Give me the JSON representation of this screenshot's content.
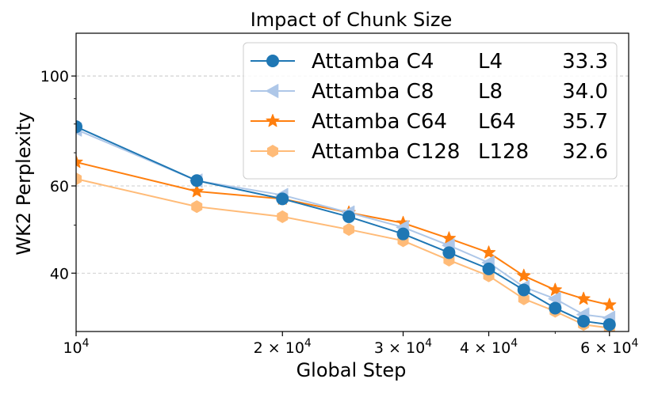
{
  "chart_data": {
    "type": "line",
    "title": "Impact of Chunk Size",
    "xlabel": "Global Step",
    "ylabel": "WK2 Perplexity",
    "xscale": "log",
    "yscale": "log",
    "xlim": [
      10000,
      64000
    ],
    "ylim": [
      30.5,
      122
    ],
    "grid": "y-major-dashed",
    "legend_position": "upper-right",
    "x": [
      10000,
      15000,
      20000,
      25000,
      30000,
      35000,
      40000,
      45000,
      50000,
      55000,
      60000
    ],
    "xticks": [
      {
        "value": 10000,
        "base": "10",
        "exp": "4"
      },
      {
        "value": 20000,
        "base": "2 × 10",
        "exp": "4"
      },
      {
        "value": 30000,
        "base": "3 × 10",
        "exp": "4"
      },
      {
        "value": 40000,
        "base": "4 × 10",
        "exp": "4"
      },
      {
        "value": 60000,
        "base": "6 × 10",
        "exp": "4"
      }
    ],
    "yticks": [
      {
        "value": 40,
        "label": "40"
      },
      {
        "value": 60,
        "label": "60"
      },
      {
        "value": 100,
        "label": "100"
      }
    ],
    "yminor": [
      50,
      70,
      80,
      90
    ],
    "series": [
      {
        "name": "Attamba C4",
        "layers": "L4",
        "score": "33.3",
        "color": "#1f77b4",
        "marker": "circle",
        "values": [
          79.0,
          61.5,
          56.5,
          52.0,
          48.0,
          44.0,
          40.8,
          37.0,
          34.0,
          32.0,
          31.5
        ]
      },
      {
        "name": "Attamba C8",
        "layers": "L8",
        "score": "34.0",
        "color": "#aec7e8",
        "marker": "triangle-left",
        "values": [
          78.0,
          61.5,
          57.5,
          53.0,
          49.5,
          45.5,
          42.0,
          37.5,
          35.5,
          33.0,
          32.5
        ]
      },
      {
        "name": "Attamba C64",
        "layers": "L64",
        "score": "35.7",
        "color": "#ff7f0e",
        "marker": "star",
        "values": [
          67.0,
          58.5,
          56.5,
          53.0,
          50.5,
          47.0,
          44.0,
          39.5,
          37.0,
          35.5,
          34.5
        ]
      },
      {
        "name": "Attamba C128",
        "layers": "L128",
        "score": "32.6",
        "color": "#ffbb78",
        "marker": "hexagon",
        "values": [
          62.0,
          54.5,
          52.0,
          49.0,
          46.5,
          42.5,
          39.5,
          35.5,
          33.5,
          31.5,
          31.0
        ]
      }
    ]
  }
}
